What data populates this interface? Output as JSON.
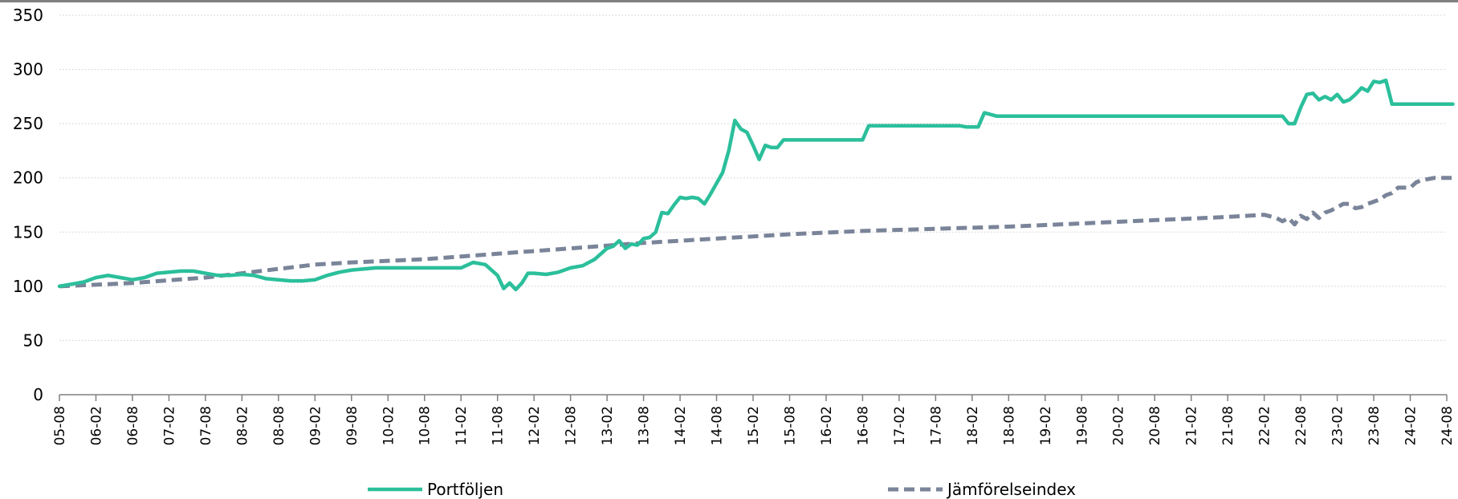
{
  "chart_data": {
    "type": "line",
    "ylim": [
      0,
      350
    ],
    "yticks": [
      0,
      50,
      100,
      150,
      200,
      250,
      300,
      350
    ],
    "grid": true,
    "legend_position": "bottom",
    "xticks": [
      "05-08",
      "06-02",
      "06-08",
      "07-02",
      "07-08",
      "08-02",
      "08-08",
      "09-02",
      "09-08",
      "10-02",
      "10-08",
      "11-02",
      "11-08",
      "12-02",
      "12-08",
      "13-02",
      "13-08",
      "14-02",
      "14-08",
      "15-02",
      "15-08",
      "16-02",
      "16-08",
      "17-02",
      "17-08",
      "18-02",
      "18-08",
      "19-02",
      "19-08",
      "20-02",
      "20-08",
      "21-02",
      "21-08",
      "22-02",
      "22-08",
      "23-02",
      "23-08",
      "24-02",
      "24-08"
    ],
    "series": [
      {
        "name": "Portföljen",
        "color": "#2bbf9b",
        "style": "solid",
        "x": [
          "05-08",
          "05-10",
          "05-12",
          "06-02",
          "06-04",
          "06-06",
          "06-08",
          "06-10",
          "06-12",
          "07-02",
          "07-04",
          "07-06",
          "07-08",
          "07-10",
          "07-12",
          "08-02",
          "08-04",
          "08-06",
          "08-08",
          "08-10",
          "08-12",
          "09-02",
          "09-04",
          "09-06",
          "09-08",
          "09-10",
          "09-12",
          "10-02",
          "10-04",
          "10-06",
          "10-08",
          "10-10",
          "10-12",
          "11-02",
          "11-04",
          "11-06",
          "11-08",
          "11-09",
          "11-10",
          "11-11",
          "11-12",
          "12-01",
          "12-02",
          "12-04",
          "12-06",
          "12-08",
          "12-10",
          "12-12",
          "13-02",
          "13-03",
          "13-04",
          "13-05",
          "13-06",
          "13-07",
          "13-08",
          "13-09",
          "13-10",
          "13-11",
          "13-12",
          "14-01",
          "14-02",
          "14-03",
          "14-04",
          "14-05",
          "14-06",
          "14-07",
          "14-08",
          "14-09",
          "14-10",
          "14-11",
          "14-12",
          "15-01",
          "15-02",
          "15-03",
          "15-04",
          "15-05",
          "15-06",
          "15-07",
          "15-08",
          "15-09",
          "15-10",
          "16-06",
          "16-08",
          "16-09",
          "16-12",
          "17-06",
          "17-12",
          "18-01",
          "18-02",
          "18-03",
          "18-04",
          "18-06",
          "19-06",
          "20-06",
          "21-06",
          "22-02",
          "22-03",
          "22-04",
          "22-05",
          "22-06",
          "22-07",
          "22-08",
          "22-09",
          "22-10",
          "22-11",
          "22-12",
          "23-01",
          "23-02",
          "23-03",
          "23-04",
          "23-05",
          "23-06",
          "23-07",
          "23-08",
          "23-09",
          "23-10",
          "23-11",
          "23-12",
          "24-06",
          "24-08",
          "24-09"
        ],
        "values": [
          100,
          102,
          104,
          108,
          110,
          108,
          106,
          108,
          112,
          113,
          114,
          114,
          112,
          110,
          110,
          111,
          110,
          107,
          106,
          105,
          105,
          106,
          110,
          113,
          115,
          116,
          117,
          117,
          117,
          117,
          117,
          117,
          117,
          117,
          122,
          120,
          110,
          98,
          103,
          97,
          103,
          112,
          112,
          111,
          113,
          117,
          119,
          125,
          135,
          137,
          142,
          135,
          139,
          138,
          144,
          145,
          150,
          168,
          167,
          175,
          182,
          181,
          182,
          181,
          176,
          185,
          195,
          205,
          225,
          253,
          245,
          242,
          230,
          217,
          230,
          228,
          228,
          235,
          235,
          235,
          235,
          235,
          235,
          248,
          248,
          248,
          248,
          247,
          247,
          247,
          260,
          257,
          257,
          257,
          257,
          257,
          257,
          257,
          257,
          250,
          250,
          265,
          277,
          278,
          272,
          275,
          272,
          277,
          270,
          272,
          277,
          283,
          280,
          289,
          288,
          290,
          268,
          268,
          268,
          268,
          268
        ]
      },
      {
        "name": "Jämförelseindex",
        "color": "#7a8499",
        "style": "dashed",
        "x": [
          "05-08",
          "06-08",
          "07-08",
          "08-02",
          "08-08",
          "09-02",
          "09-08",
          "10-08",
          "11-08",
          "12-08",
          "13-08",
          "14-08",
          "15-08",
          "16-08",
          "17-08",
          "18-08",
          "19-08",
          "20-08",
          "21-08",
          "22-02",
          "22-04",
          "22-05",
          "22-06",
          "22-07",
          "22-08",
          "22-09",
          "22-10",
          "22-11",
          "22-12",
          "23-01",
          "23-02",
          "23-03",
          "23-04",
          "23-05",
          "23-06",
          "23-07",
          "23-08",
          "23-09",
          "23-10",
          "23-11",
          "23-12",
          "24-01",
          "24-02",
          "24-03",
          "24-04",
          "24-05",
          "24-06",
          "24-07",
          "24-08",
          "24-09"
        ],
        "values": [
          100,
          103,
          108,
          112,
          116,
          120,
          122,
          125,
          130,
          135,
          140,
          144,
          148,
          151,
          153,
          155,
          158,
          161,
          164,
          166,
          163,
          160,
          163,
          157,
          165,
          162,
          168,
          163,
          168,
          170,
          173,
          176,
          176,
          172,
          173,
          176,
          178,
          180,
          184,
          186,
          191,
          191,
          191,
          196,
          198,
          199,
          200,
          200,
          200,
          200
        ]
      }
    ]
  }
}
